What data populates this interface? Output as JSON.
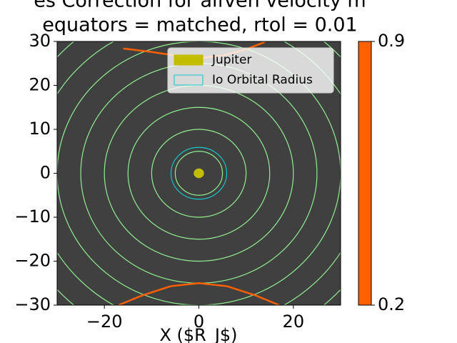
{
  "chart_data": {
    "type": "contour",
    "title": [
      "es Correction for alfven velocity m",
      "equators = matched, rtol = 0.01"
    ],
    "xlabel": "X ($R_J$)",
    "xlim": [
      -30,
      30
    ],
    "ylim": [
      -30,
      30
    ],
    "xticks": [
      {
        "value": -20,
        "label": "−20"
      },
      0,
      20
    ],
    "yticks": [
      {
        "value": -30,
        "label": "−30"
      },
      {
        "value": -20,
        "label": "−20"
      },
      {
        "value": -10,
        "label": "−10"
      },
      0,
      10,
      20,
      30
    ],
    "background": "#404040",
    "contour_color": "#90ee90",
    "contour_radii": [
      5,
      10,
      15,
      20,
      25,
      30,
      35,
      40
    ],
    "series": [
      {
        "name": "Jupiter",
        "kind": "filled",
        "color": "#c2bd00",
        "radius": 1
      },
      {
        "name": "Io Orbital Radius",
        "kind": "outline",
        "color": "#17c5cc",
        "radius": 5.9
      }
    ],
    "orange_color": "#ff6000",
    "orange_curves": [
      {
        "x": [
          -16,
          -10,
          -5,
          0,
          5,
          10,
          14
        ],
        "y": [
          28.4,
          27.6,
          26.8,
          26.2,
          26.8,
          28.2,
          29.9
        ]
      },
      {
        "x": [
          -17,
          -12,
          -6,
          0,
          6,
          12,
          17
        ],
        "y": [
          -30,
          -27.8,
          -25.7,
          -25,
          -25.7,
          -27.8,
          -30
        ]
      }
    ],
    "legend_loc": "upper right",
    "colorbar": {
      "lim": [
        0.2,
        0.9
      ],
      "ticks": [
        0.2,
        0.9
      ],
      "color": "#ff6000"
    }
  }
}
